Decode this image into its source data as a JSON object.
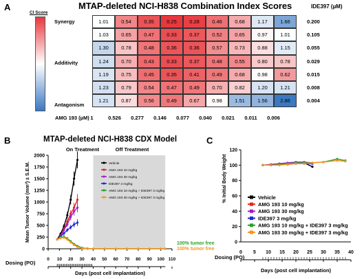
{
  "panel_a": {
    "letter": "A",
    "title": "MTAP-deleted NCI-H838 Combination Index Scores",
    "legend_title": "CI Score",
    "legend_labels": [
      "Synergy",
      "Additivity",
      "Antagonism"
    ],
    "row_axis_label": "IDE397 (µM)",
    "col_axis_label": "AMG 193 (µM)",
    "row_values": [
      "0.200",
      "0.105",
      "0.055",
      "0.029",
      "0.015",
      "0.008",
      "0.004"
    ],
    "col_values": [
      "1",
      "0.526",
      "0.277",
      "0.146",
      "0.077",
      "0.040",
      "0.021",
      "0.011",
      "0.006"
    ],
    "colors": {
      "synergy": "#e8383d",
      "additivity": "#ffffff",
      "antagonism": "#3a78c2"
    }
  },
  "chart_data": [
    {
      "type": "heatmap",
      "title": "MTAP-deleted NCI-H838 Combination Index Scores",
      "xlabel": "AMG 193 (µM)",
      "ylabel": "IDE397 (µM)",
      "x": [
        "1",
        "0.526",
        "0.277",
        "0.146",
        "0.077",
        "0.040",
        "0.021",
        "0.011",
        "0.006"
      ],
      "y": [
        "0.200",
        "0.105",
        "0.055",
        "0.029",
        "0.015",
        "0.008",
        "0.004"
      ],
      "values": [
        [
          "1.01",
          "0.54",
          "0.35",
          "0.25",
          "0.28",
          "0.46",
          "0.68",
          "1.17",
          "1.66"
        ],
        [
          "1.03",
          "0.65",
          "0.47",
          "0.33",
          "0.37",
          "0.52",
          "0.65",
          "0.97",
          "1.01"
        ],
        [
          "1.30",
          "0.78",
          "0.48",
          "0.36",
          "0.36",
          "0.57",
          "0.73",
          "0.88",
          "1.15"
        ],
        [
          "1.24",
          "0.70",
          "0.43",
          "0.33",
          "0.37",
          "0.48",
          "0.55",
          "0.80",
          "0.78"
        ],
        [
          "1.19",
          "0.75",
          "0.45",
          "0.35",
          "0.41",
          "0.49",
          "0.68",
          "0.98",
          "0.62"
        ],
        [
          "1.23",
          "0.79",
          "0.54",
          "0.47",
          "0.49",
          "0.70",
          "0.82",
          "1.20",
          "1.21"
        ],
        [
          "1.21",
          "0.87",
          "0.56",
          "0.49",
          "0.67",
          "0.98",
          "1.51",
          "1.56",
          "2.86"
        ]
      ]
    },
    {
      "type": "line",
      "title": "MTAP-deleted NCI-H838 CDX Model",
      "xlabel": "Days (post cell implantation)",
      "ylabel": "Mean Tumor Volume (mm³) ± S.E.M.",
      "xlim": [
        0,
        110
      ],
      "ylim": [
        0,
        2000
      ],
      "xticks": [
        "0",
        "10",
        "20",
        "30",
        "40",
        "50",
        "60",
        "70",
        "80",
        "90",
        "100",
        "110"
      ],
      "yticks": [
        "0",
        "250",
        "500",
        "750",
        "1000",
        "1250",
        "1500",
        "1750",
        "2000"
      ],
      "series": [
        {
          "name": "Vehicle",
          "color": "#000000",
          "x": [
            8,
            11,
            14,
            17,
            20,
            23,
            26
          ],
          "y": [
            200,
            320,
            480,
            720,
            1050,
            1500,
            1900
          ],
          "err": [
            20,
            30,
            50,
            70,
            100,
            150,
            180
          ]
        },
        {
          "name": "AMG 193 10 mg/kg",
          "color": "#e52521",
          "x": [
            8,
            11,
            14,
            17,
            20,
            23,
            26
          ],
          "y": [
            200,
            280,
            420,
            580,
            750,
            880,
            1050
          ],
          "err": [
            20,
            25,
            40,
            60,
            80,
            100,
            120
          ]
        },
        {
          "name": "AMG 193 30 mg/kg",
          "color": "#a020c8",
          "x": [
            8,
            11,
            14,
            17,
            20,
            23,
            26
          ],
          "y": [
            200,
            270,
            400,
            520,
            680,
            800,
            880
          ],
          "err": [
            20,
            25,
            35,
            50,
            70,
            90,
            100
          ]
        },
        {
          "name": "IDE397 3 mg/kg",
          "color": "#1a2ad6",
          "x": [
            8,
            11,
            14,
            17,
            20,
            23,
            26
          ],
          "y": [
            200,
            260,
            330,
            400,
            460,
            520,
            560
          ],
          "err": [
            20,
            25,
            30,
            40,
            50,
            60,
            70
          ]
        },
        {
          "name": "AMG 193 10 mg/kg + IDE397 3 mg/kg",
          "color": "#2ca02c",
          "x": [
            8,
            11,
            14,
            17,
            20,
            23,
            26,
            30,
            35,
            40,
            50,
            60,
            70,
            80,
            90,
            100,
            104
          ],
          "y": [
            200,
            240,
            260,
            220,
            160,
            100,
            60,
            20,
            5,
            0,
            0,
            0,
            0,
            0,
            0,
            0,
            0
          ],
          "err": [
            20,
            30,
            40,
            35,
            25,
            20,
            15,
            10,
            5,
            0,
            0,
            0,
            0,
            0,
            0,
            0,
            0
          ]
        },
        {
          "name": "AMG 193 30 mg/kg + IDE397 3 mg/kg",
          "color": "#f7941d",
          "x": [
            8,
            11,
            14,
            17,
            20,
            23,
            26,
            30,
            35,
            40,
            50,
            60,
            70,
            80,
            90,
            100,
            104
          ],
          "y": [
            200,
            230,
            240,
            200,
            140,
            80,
            40,
            10,
            0,
            0,
            0,
            0,
            0,
            0,
            0,
            0,
            0
          ],
          "err": [
            20,
            30,
            35,
            30,
            20,
            15,
            10,
            5,
            0,
            0,
            0,
            0,
            0,
            0,
            0,
            0,
            0
          ]
        }
      ],
      "annotations": [
        "On Treatment",
        "Off Treatment",
        "100% tumor free",
        "100% tumor free"
      ],
      "dosing_label": "Dosing (PO)"
    },
    {
      "type": "line",
      "xlabel": "Days (post cell implantation)",
      "ylabel": "% Initial Body Weight",
      "xlim": [
        0,
        40
      ],
      "ylim": [
        0,
        120
      ],
      "xticks": [
        "0",
        "5",
        "10",
        "15",
        "20",
        "25",
        "30",
        "35",
        "40"
      ],
      "yticks": [
        "0",
        "20",
        "40",
        "60",
        "80",
        "100",
        "120"
      ],
      "series": [
        {
          "name": "Vehicle",
          "color": "#000000",
          "x": [
            8,
            11,
            14,
            17,
            20,
            23,
            26
          ],
          "y": [
            100,
            100,
            101,
            101,
            102,
            103,
            98
          ]
        },
        {
          "name": "AMG 193 10 mg/kg",
          "color": "#e52521",
          "x": [
            8,
            11,
            14,
            17,
            20,
            23,
            26
          ],
          "y": [
            100,
            100,
            101,
            102,
            103,
            103,
            102
          ]
        },
        {
          "name": "AMG 193 30 mg/kg",
          "color": "#a020c8",
          "x": [
            8,
            11,
            14,
            17,
            20,
            23,
            26
          ],
          "y": [
            100,
            101,
            102,
            103,
            104,
            104,
            103
          ]
        },
        {
          "name": "IDE397 3 mg/kg",
          "color": "#1a2ad6",
          "x": [
            8,
            11,
            14,
            17,
            20,
            23,
            26
          ],
          "y": [
            100,
            100,
            101,
            101,
            102,
            102,
            102
          ]
        },
        {
          "name": "AMG 193 10 mg/kg + IDE397 3 mg/kg",
          "color": "#2ca02c",
          "x": [
            8,
            11,
            14,
            17,
            20,
            23,
            26,
            30,
            35,
            38
          ],
          "y": [
            100,
            100,
            101,
            102,
            103,
            103,
            103,
            104,
            108,
            106
          ]
        },
        {
          "name": "AMG 193 30 mg/kg + IDE397 3 mg/kg",
          "color": "#f7941d",
          "x": [
            8,
            11,
            14,
            17,
            20,
            23,
            26,
            30,
            35,
            38
          ],
          "y": [
            100,
            100,
            100,
            101,
            102,
            102,
            103,
            104,
            106,
            105
          ]
        }
      ],
      "dosing_label": "Dosing (PO)"
    }
  ],
  "panel_b": {
    "letter": "B"
  },
  "panel_c": {
    "letter": "C"
  }
}
